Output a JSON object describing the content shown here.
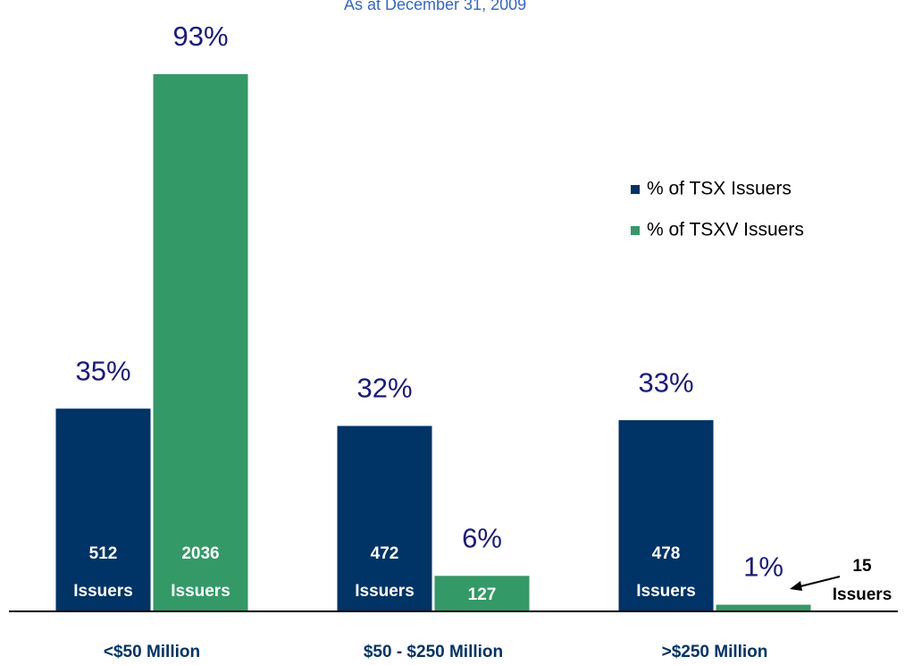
{
  "chart_data": {
    "type": "bar",
    "subtitle": "As at December 31, 2009",
    "categories": [
      "<$50 Million",
      "$50 - $250 Million",
      ">$250 Million"
    ],
    "series": [
      {
        "name": "% of TSX Issuers",
        "color": "#003366",
        "values": [
          35,
          32,
          33
        ],
        "value_labels": [
          "35%",
          "32%",
          "33%"
        ],
        "count_labels": [
          [
            "512",
            "Issuers"
          ],
          [
            "472",
            "Issuers"
          ],
          [
            "478",
            "Issuers"
          ]
        ]
      },
      {
        "name": "% of TSXV Issuers",
        "color": "#339966",
        "values": [
          93,
          6,
          1
        ],
        "value_labels": [
          "93%",
          "6%",
          "1%"
        ],
        "count_labels": [
          [
            "2036",
            "Issuers"
          ],
          [
            "127"
          ],
          [
            "15",
            "Issuers"
          ]
        ]
      }
    ],
    "ylim": [
      0,
      93
    ],
    "legend": "right"
  }
}
